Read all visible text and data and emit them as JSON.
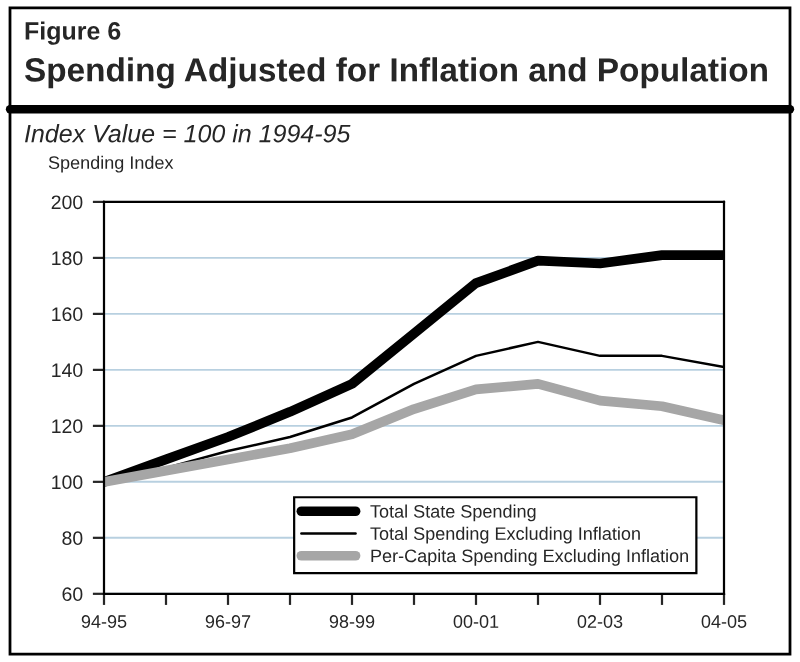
{
  "chart_data": {
    "type": "line",
    "title": "Spending Adjusted for Inflation and Population",
    "subtitle": "Index Value = 100 in 1994-95",
    "annotations": [
      "Figure 6"
    ],
    "ylabel": "Spending Index",
    "categories": [
      "94-95",
      null,
      "96-97",
      null,
      "98-99",
      null,
      "00-01",
      null,
      "02-03",
      null,
      "04-05"
    ],
    "series": [
      {
        "name": "Total State Spending",
        "color": "#000000",
        "values": [
          100,
          108,
          116,
          125,
          135,
          153,
          171,
          179,
          178,
          181,
          181
        ]
      },
      {
        "name": "Total Spending Excluding Inflation",
        "color": "#000000",
        "values": [
          100,
          105,
          111,
          116,
          123,
          135,
          145,
          150,
          145,
          145,
          141
        ]
      },
      {
        "name": "Per-Capita Spending Excluding Inflation",
        "color": "#a6a6a6",
        "values": [
          100,
          104,
          108,
          112,
          117,
          126,
          133,
          135,
          129,
          127,
          122
        ]
      }
    ],
    "ylim": [
      60,
      200
    ],
    "yticks": [
      60,
      80,
      100,
      120,
      140,
      160,
      180,
      200
    ],
    "grid": "y",
    "legend": "bottom right",
    "marker": "none",
    "line_style": "solid"
  }
}
